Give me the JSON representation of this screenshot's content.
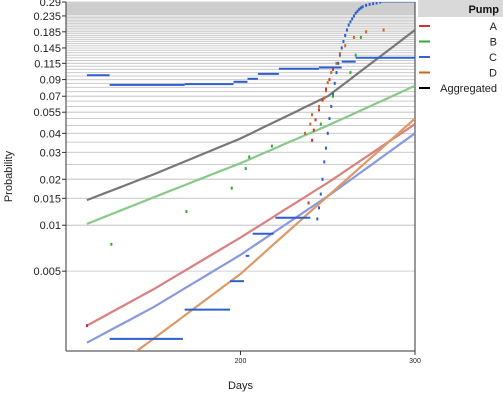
{
  "chart_data": {
    "type": "line",
    "xlabel": "Days",
    "ylabel": "Probability",
    "xlim": [
      100,
      300
    ],
    "ylim": [
      0.0015,
      0.29
    ],
    "yscale": "log",
    "x_ticks": [
      200,
      300
    ],
    "y_ticks": [
      0.29,
      0.235,
      0.185,
      0.145,
      0.115,
      0.09,
      0.07,
      0.055,
      0.04,
      0.03,
      0.02,
      0.015,
      0.01,
      0.005
    ],
    "grid": true,
    "legend": {
      "title": "Pump",
      "placement": "right",
      "entries": [
        {
          "label": "A",
          "color": "#cc3333"
        },
        {
          "label": "B",
          "color": "#33aa33"
        },
        {
          "label": "C",
          "color": "#3366cc"
        },
        {
          "label": "D",
          "color": "#cc6622"
        },
        {
          "label": "Aggregated",
          "color": "#000000"
        }
      ]
    },
    "series": [
      {
        "name": "A",
        "kind": "curve",
        "color": "#d98080",
        "x": [
          112,
          150,
          200,
          250,
          300
        ],
        "y": [
          0.0022,
          0.0038,
          0.0083,
          0.019,
          0.046
        ]
      },
      {
        "name": "B",
        "kind": "curve",
        "color": "#88c888",
        "x": [
          112,
          150,
          200,
          250,
          300
        ],
        "y": [
          0.0102,
          0.0152,
          0.0255,
          0.045,
          0.082
        ]
      },
      {
        "name": "C",
        "kind": "curve",
        "color": "#8899dd",
        "x": [
          112,
          150,
          200,
          250,
          300
        ],
        "y": [
          0.0017,
          0.0029,
          0.0064,
          0.0155,
          0.04
        ]
      },
      {
        "name": "D",
        "kind": "curve",
        "color": "#dd9966",
        "x": [
          137,
          150,
          200,
          250,
          300
        ],
        "y": [
          0.0014,
          0.0018,
          0.0048,
          0.0155,
          0.05
        ]
      },
      {
        "name": "Aggregated",
        "kind": "curve",
        "color": "#777777",
        "x": [
          112,
          150,
          200,
          250,
          300
        ],
        "y": [
          0.0146,
          0.0215,
          0.037,
          0.07,
          0.19
        ]
      },
      {
        "name": "C",
        "kind": "steps",
        "color": "#2e5fd0",
        "segments": [
          [
            112,
            125,
            0.096
          ],
          [
            125,
            168,
            0.083
          ],
          [
            168,
            196,
            0.084
          ],
          [
            196,
            204,
            0.087
          ],
          [
            204,
            210,
            0.091
          ],
          [
            210,
            222,
            0.098
          ],
          [
            222,
            245,
            0.106
          ],
          [
            245,
            258,
            0.108
          ],
          [
            258,
            266,
            0.118
          ],
          [
            266,
            300,
            0.125
          ],
          [
            125,
            167,
            0.0018
          ],
          [
            168,
            194,
            0.0028
          ],
          [
            194,
            202,
            0.0043
          ],
          [
            203,
            205,
            0.0063
          ],
          [
            207,
            219,
            0.0088
          ],
          [
            220,
            240,
            0.0112
          ]
        ]
      },
      {
        "name": "C",
        "kind": "points",
        "color": "#2e5fd0",
        "x": [
          244,
          245,
          246,
          247,
          248,
          249,
          250,
          251,
          252,
          253,
          254,
          255,
          256,
          257,
          258,
          259,
          260,
          261,
          262,
          263,
          264,
          265,
          266,
          267,
          268,
          269,
          270,
          272,
          274,
          276,
          278,
          280
        ],
        "y": [
          0.011,
          0.013,
          0.016,
          0.02,
          0.026,
          0.032,
          0.04,
          0.05,
          0.06,
          0.072,
          0.085,
          0.1,
          0.115,
          0.13,
          0.145,
          0.16,
          0.175,
          0.19,
          0.205,
          0.215,
          0.225,
          0.235,
          0.245,
          0.252,
          0.26,
          0.265,
          0.27,
          0.276,
          0.28,
          0.283,
          0.286,
          0.29
        ]
      },
      {
        "name": "C",
        "kind": "steps",
        "color": "#2e5fd0",
        "segments": [
          [
            280,
            300,
            0.292
          ]
        ]
      },
      {
        "name": "D",
        "kind": "points",
        "color": "#cc6622",
        "x": [
          237,
          240,
          241,
          245,
          248,
          249,
          250,
          252,
          255,
          257,
          260,
          265,
          272,
          282
        ],
        "y": [
          0.04,
          0.046,
          0.053,
          0.06,
          0.068,
          0.076,
          0.086,
          0.1,
          0.115,
          0.133,
          0.15,
          0.17,
          0.185,
          0.19
        ]
      },
      {
        "name": "B",
        "kind": "points",
        "color": "#33aa33",
        "x": [
          126,
          169,
          195,
          203,
          205,
          218,
          246,
          253,
          263,
          266,
          269
        ],
        "y": [
          0.0075,
          0.0123,
          0.0175,
          0.0235,
          0.028,
          0.033,
          0.046,
          0.07,
          0.1,
          0.13,
          0.17
        ]
      },
      {
        "name": "A",
        "kind": "points",
        "color": "#cc3333",
        "x": [
          112,
          239,
          241,
          242,
          243,
          245,
          247,
          249,
          251,
          253
        ],
        "y": [
          0.0022,
          0.014,
          0.036,
          0.042,
          0.049,
          0.057,
          0.066,
          0.078,
          0.09,
          0.105
        ]
      }
    ]
  }
}
